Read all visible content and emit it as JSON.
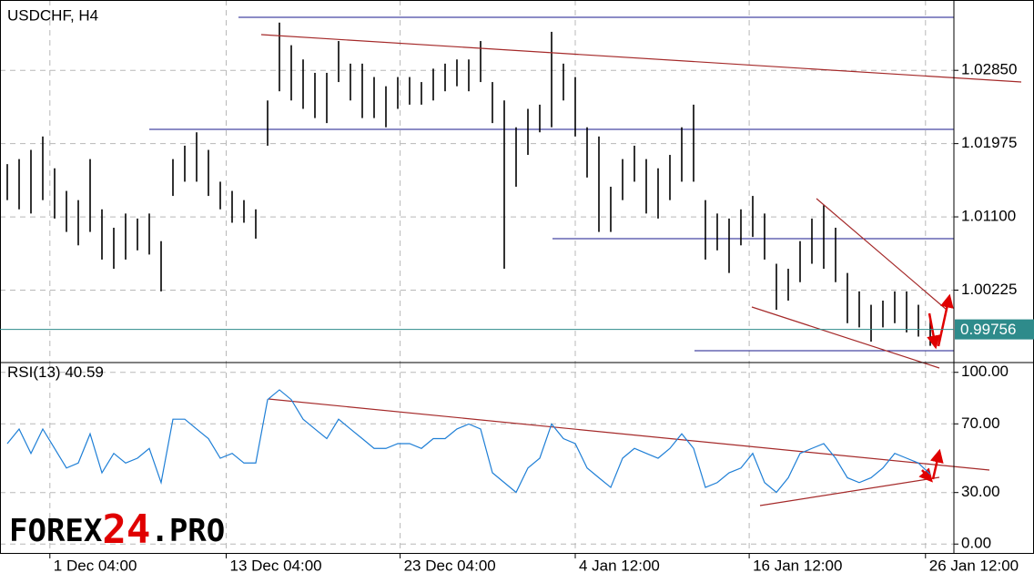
{
  "chart_data": [
    {
      "type": "ohlc",
      "title": "USDCHF, H4",
      "color": "#000000",
      "xlim": [
        0,
        78
      ],
      "ylim": [
        0.9936,
        1.0369
      ],
      "yticks": [
        {
          "value": 1.0285,
          "label": "1.02850"
        },
        {
          "value": 1.01975,
          "label": "1.01975"
        },
        {
          "value": 1.011,
          "label": "1.01100"
        },
        {
          "value": 1.00225,
          "label": "1.00225"
        }
      ],
      "grid": true,
      "last_price": 0.99756,
      "high": [
        1.0173,
        1.0179,
        1.019,
        1.0206,
        1.0168,
        1.0141,
        1.013,
        1.0179,
        1.0119,
        1.0097,
        1.0114,
        1.0108,
        1.0114,
        1.0081,
        1.0179,
        1.0195,
        1.0211,
        1.019,
        1.0152,
        1.0141,
        1.013,
        1.0119,
        1.0249,
        1.0342,
        1.0315,
        1.0298,
        1.0282,
        1.0282,
        1.032,
        1.0293,
        1.0293,
        1.0277,
        1.0266,
        1.0277,
        1.0277,
        1.0271,
        1.0287,
        1.0293,
        1.0298,
        1.0298,
        1.032,
        1.0271,
        1.0249,
        1.0217,
        1.0239,
        1.0244,
        1.0331,
        1.0293,
        1.0277,
        1.0217,
        1.0206,
        1.0146,
        1.0179,
        1.0195,
        1.0179,
        1.0168,
        1.0184,
        1.0217,
        1.0244,
        1.013,
        1.0114,
        1.0108,
        1.0119,
        1.0135,
        1.0114,
        1.0054,
        1.0048,
        1.0081,
        1.0108,
        1.0124,
        1.0097,
        1.0043,
        1.0021,
        1.0005,
        1.001,
        1.0021,
        1.0021,
        1.0005,
        0.9989
      ],
      "low": [
        1.013,
        1.0119,
        1.0114,
        1.013,
        1.0108,
        1.0092,
        1.0076,
        1.0092,
        1.0059,
        1.0048,
        1.0059,
        1.007,
        1.0065,
        1.0021,
        1.0135,
        1.0152,
        1.0152,
        1.0135,
        1.0119,
        1.0103,
        1.0103,
        1.0084,
        1.0195,
        1.026,
        1.0249,
        1.0239,
        1.0228,
        1.0222,
        1.0271,
        1.0249,
        1.0228,
        1.0228,
        1.0217,
        1.0239,
        1.0244,
        1.0244,
        1.0249,
        1.026,
        1.0266,
        1.026,
        1.0271,
        1.0222,
        1.0048,
        1.0146,
        1.0184,
        1.0211,
        1.0217,
        1.0249,
        1.0206,
        1.0157,
        1.0092,
        1.0092,
        1.013,
        1.0152,
        1.0114,
        1.0108,
        1.013,
        1.0152,
        1.0152,
        1.0059,
        1.007,
        1.0043,
        1.0076,
        1.0086,
        1.0059,
        0.9999,
        1.001,
        1.0032,
        1.0054,
        1.0048,
        1.0032,
        0.9983,
        0.9978,
        0.9961,
        0.9978,
        0.9983,
        0.9972,
        0.9967,
        0.9956
      ]
    },
    {
      "type": "line",
      "title": "RSI(13)",
      "color": "#1f7fd6",
      "xlim": [
        0,
        78
      ],
      "ylim": [
        -5.7,
        105.7
      ],
      "yticks": [
        {
          "value": 100,
          "label": "100.00"
        },
        {
          "value": 70,
          "label": "70.00"
        },
        {
          "value": 30,
          "label": "30.00"
        },
        {
          "value": 0,
          "label": "0.00"
        }
      ],
      "grid": true,
      "xticks": [
        {
          "value": 3.6,
          "label": "1 Dec 04:00"
        },
        {
          "value": 18.5,
          "label": "13 Dec 04:00"
        },
        {
          "value": 33.2,
          "label": "23 Dec 04:00"
        },
        {
          "value": 48,
          "label": "4 Jan 12:00"
        },
        {
          "value": 62.7,
          "label": "16 Jan 12:00"
        },
        {
          "value": 77.6,
          "label": "26 Jan 12:00"
        }
      ],
      "values": [
        58.5,
        67.0,
        52.8,
        67.0,
        55.7,
        44.3,
        47.2,
        64.2,
        41.5,
        52.8,
        47.2,
        50.0,
        55.7,
        35.8,
        72.7,
        72.7,
        67.0,
        61.4,
        50.0,
        52.8,
        47.2,
        47.2,
        84.1,
        89.8,
        84.1,
        72.7,
        67.0,
        61.4,
        72.7,
        67.0,
        61.4,
        55.7,
        55.7,
        58.5,
        58.5,
        55.7,
        61.4,
        61.4,
        67.0,
        69.9,
        67.0,
        41.5,
        35.8,
        30.1,
        44.3,
        50.0,
        69.9,
        61.4,
        58.5,
        44.3,
        38.6,
        33.0,
        50.0,
        55.7,
        52.8,
        50.0,
        55.7,
        64.2,
        55.7,
        33.0,
        35.8,
        41.5,
        44.3,
        52.8,
        35.8,
        30.1,
        38.6,
        52.8,
        55.7,
        58.5,
        50.0,
        38.6,
        35.8,
        38.6,
        44.3,
        52.8,
        50.0,
        47.2,
        40.59
      ]
    }
  ],
  "watermark": [
    "FOREX",
    "24",
    ".PRO"
  ]
}
